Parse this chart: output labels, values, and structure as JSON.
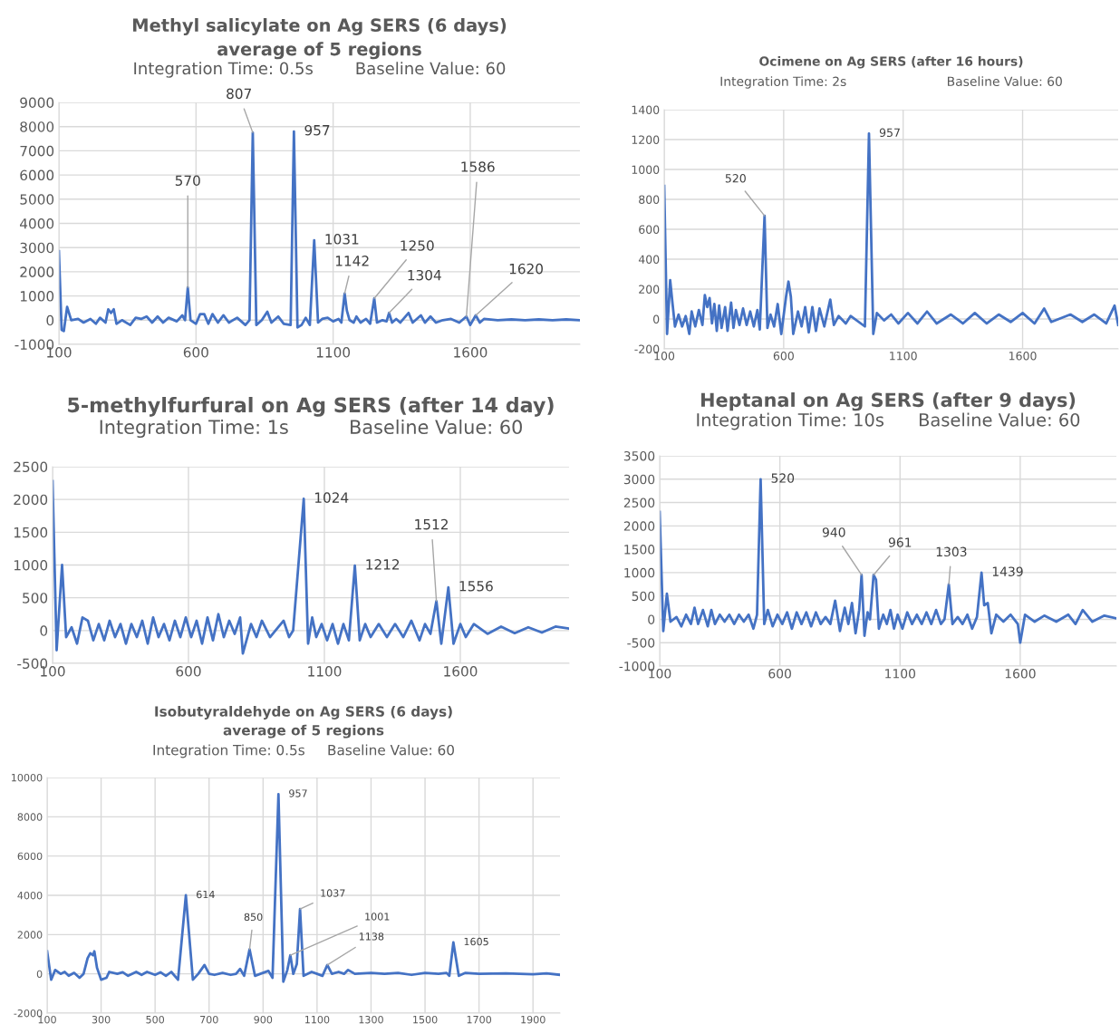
{
  "chart_data": [
    {
      "type": "line",
      "title": "Methyl salicylate on Ag SERS (6 days)\naverage of 5 regions",
      "subtitle": "Integration Time: 0.5s        Baseline Value: 60",
      "color": "#4472c4",
      "grid": true,
      "xlim": [
        100,
        2000
      ],
      "xticks": [
        100,
        600,
        1100,
        1600
      ],
      "ylim": [
        -1000,
        9000
      ],
      "yticks": [
        -1000,
        0,
        1000,
        2000,
        3000,
        4000,
        5000,
        6000,
        7000,
        8000,
        9000
      ],
      "x": [
        100,
        110,
        118,
        130,
        145,
        170,
        190,
        215,
        235,
        250,
        270,
        280,
        290,
        300,
        310,
        330,
        360,
        380,
        400,
        420,
        440,
        460,
        480,
        500,
        530,
        550,
        560,
        570,
        580,
        600,
        615,
        630,
        645,
        660,
        680,
        700,
        720,
        750,
        780,
        795,
        807,
        820,
        840,
        860,
        875,
        900,
        920,
        945,
        957,
        970,
        985,
        1000,
        1015,
        1031,
        1045,
        1060,
        1080,
        1100,
        1120,
        1130,
        1142,
        1150,
        1160,
        1175,
        1185,
        1200,
        1220,
        1235,
        1250,
        1260,
        1280,
        1295,
        1304,
        1315,
        1330,
        1345,
        1375,
        1390,
        1420,
        1435,
        1455,
        1475,
        1500,
        1530,
        1560,
        1586,
        1600,
        1620,
        1635,
        1650,
        1700,
        1750,
        1800,
        1850,
        1900,
        1950,
        2000
      ],
      "values": [
        2850,
        -400,
        -450,
        550,
        0,
        50,
        -100,
        50,
        -150,
        100,
        -100,
        450,
        300,
        450,
        -150,
        0,
        -200,
        100,
        50,
        150,
        -100,
        150,
        -100,
        100,
        -50,
        200,
        0,
        1350,
        0,
        -150,
        250,
        250,
        -150,
        250,
        -100,
        200,
        -100,
        100,
        -200,
        0,
        7750,
        -200,
        0,
        350,
        -100,
        150,
        -150,
        -200,
        7800,
        -300,
        -200,
        100,
        -200,
        3300,
        -100,
        50,
        100,
        -50,
        50,
        -100,
        1100,
        400,
        0,
        -100,
        150,
        -100,
        50,
        -150,
        900,
        -100,
        0,
        -50,
        300,
        -100,
        50,
        -100,
        300,
        -100,
        200,
        -100,
        150,
        -100,
        0,
        50,
        -100,
        150,
        -200,
        200,
        -100,
        50,
        0,
        30,
        0,
        30,
        0,
        30,
        0
      ],
      "annotations": [
        {
          "text": "807",
          "x": 807,
          "y": 7750
        },
        {
          "text": "570",
          "x": 570,
          "y": 1350
        },
        {
          "text": "957",
          "x": 957,
          "y": 7800
        },
        {
          "text": "1031",
          "x": 1031,
          "y": 3300
        },
        {
          "text": "1142",
          "x": 1142,
          "y": 1100
        },
        {
          "text": "1250",
          "x": 1250,
          "y": 900
        },
        {
          "text": "1304",
          "x": 1304,
          "y": 300
        },
        {
          "text": "1586",
          "x": 1586,
          "y": 150
        },
        {
          "text": "1620",
          "x": 1620,
          "y": 200
        }
      ]
    },
    {
      "type": "line",
      "title": "Ocimene on Ag SERS (after 16 hours)",
      "subtitle": "Integration Time: 2s                         Baseline Value: 60",
      "color": "#4472c4",
      "grid": true,
      "xlim": [
        100,
        2000
      ],
      "xticks": [
        100,
        600,
        1100,
        1600
      ],
      "ylim": [
        -200,
        1400
      ],
      "yticks": [
        -200,
        0,
        200,
        400,
        600,
        800,
        1000,
        1200,
        1400
      ],
      "x": [
        100,
        112,
        125,
        135,
        145,
        160,
        175,
        190,
        205,
        215,
        230,
        245,
        260,
        270,
        280,
        290,
        300,
        310,
        320,
        330,
        340,
        355,
        365,
        380,
        390,
        400,
        415,
        430,
        445,
        460,
        475,
        490,
        500,
        520,
        532,
        545,
        560,
        575,
        590,
        610,
        620,
        630,
        640,
        660,
        675,
        690,
        705,
        720,
        735,
        750,
        770,
        795,
        810,
        830,
        860,
        880,
        940,
        957,
        975,
        990,
        1020,
        1050,
        1080,
        1120,
        1160,
        1200,
        1240,
        1300,
        1350,
        1400,
        1450,
        1500,
        1550,
        1600,
        1650,
        1690,
        1720,
        1800,
        1850,
        1900,
        1950,
        1985,
        2000
      ],
      "values": [
        890,
        -100,
        260,
        100,
        -50,
        30,
        -50,
        20,
        -100,
        50,
        -50,
        60,
        -40,
        160,
        80,
        140,
        -30,
        100,
        -80,
        90,
        -60,
        80,
        -80,
        110,
        -60,
        60,
        -40,
        70,
        -40,
        50,
        -50,
        60,
        -70,
        690,
        -60,
        30,
        -50,
        100,
        -100,
        150,
        250,
        150,
        -100,
        50,
        -50,
        80,
        -90,
        80,
        -80,
        70,
        -50,
        130,
        -40,
        20,
        -30,
        20,
        -50,
        1240,
        -100,
        40,
        -10,
        30,
        -30,
        40,
        -30,
        50,
        -30,
        30,
        -30,
        40,
        -30,
        30,
        -20,
        40,
        -30,
        70,
        -20,
        30,
        -20,
        30,
        -30,
        90,
        -40
      ],
      "annotations": [
        {
          "text": "520",
          "x": 520,
          "y": 690
        },
        {
          "text": "957",
          "x": 957,
          "y": 1240
        }
      ]
    },
    {
      "type": "line",
      "title": "5-methylfurfural on Ag SERS (after 14 day)",
      "subtitle": "Integration Time: 1s          Baseline Value: 60",
      "color": "#4472c4",
      "grid": true,
      "xlim": [
        100,
        2000
      ],
      "xticks": [
        100,
        600,
        1100,
        1600
      ],
      "ylim": [
        -500,
        2500
      ],
      "yticks": [
        -500,
        0,
        500,
        1000,
        1500,
        2000,
        2500
      ],
      "x": [
        100,
        115,
        135,
        150,
        170,
        190,
        210,
        230,
        250,
        270,
        290,
        310,
        330,
        350,
        370,
        390,
        410,
        430,
        450,
        470,
        490,
        510,
        530,
        550,
        570,
        590,
        610,
        630,
        650,
        670,
        690,
        710,
        730,
        750,
        770,
        790,
        800,
        830,
        850,
        870,
        900,
        930,
        950,
        970,
        985,
        1024,
        1040,
        1055,
        1070,
        1090,
        1110,
        1130,
        1150,
        1170,
        1190,
        1212,
        1230,
        1250,
        1270,
        1300,
        1330,
        1360,
        1390,
        1420,
        1450,
        1470,
        1490,
        1512,
        1530,
        1556,
        1575,
        1600,
        1620,
        1650,
        1700,
        1750,
        1800,
        1850,
        1900,
        1950,
        2000
      ],
      "values": [
        2280,
        -300,
        1000,
        -100,
        50,
        -200,
        200,
        150,
        -150,
        100,
        -150,
        150,
        -100,
        100,
        -200,
        100,
        -100,
        150,
        -200,
        200,
        -100,
        100,
        -150,
        150,
        -100,
        200,
        -100,
        150,
        -200,
        200,
        -150,
        250,
        -100,
        150,
        -50,
        200,
        -350,
        100,
        -100,
        150,
        -100,
        50,
        150,
        -100,
        0,
        2010,
        -200,
        200,
        -100,
        100,
        -150,
        100,
        -200,
        100,
        -150,
        990,
        -150,
        100,
        -100,
        100,
        -100,
        100,
        -100,
        150,
        -150,
        100,
        -50,
        450,
        -200,
        660,
        -200,
        100,
        -100,
        100,
        -50,
        60,
        -40,
        50,
        -30,
        60,
        30
      ],
      "annotations": [
        {
          "text": "1024",
          "x": 1024,
          "y": 2010
        },
        {
          "text": "1212",
          "x": 1212,
          "y": 990
        },
        {
          "text": "1512",
          "x": 1512,
          "y": 450
        },
        {
          "text": "1556",
          "x": 1556,
          "y": 660
        }
      ]
    },
    {
      "type": "line",
      "title": "Heptanal on Ag SERS (after 9 days)",
      "subtitle": "Integration Time: 10s      Baseline Value: 60",
      "color": "#4472c4",
      "grid": true,
      "xlim": [
        100,
        2000
      ],
      "xticks": [
        100,
        600,
        1100,
        1600
      ],
      "ylim": [
        -1000,
        3500
      ],
      "yticks": [
        -1000,
        -500,
        0,
        500,
        1000,
        1500,
        2000,
        2500,
        3000,
        3500
      ],
      "x": [
        100,
        115,
        130,
        145,
        170,
        190,
        210,
        230,
        245,
        260,
        280,
        300,
        315,
        330,
        350,
        370,
        390,
        410,
        430,
        450,
        470,
        490,
        505,
        520,
        535,
        550,
        570,
        590,
        610,
        630,
        650,
        670,
        690,
        710,
        730,
        750,
        770,
        790,
        810,
        830,
        850,
        870,
        885,
        900,
        915,
        930,
        940,
        952,
        965,
        975,
        990,
        1000,
        1012,
        1030,
        1045,
        1060,
        1075,
        1090,
        1110,
        1130,
        1150,
        1170,
        1190,
        1210,
        1230,
        1250,
        1270,
        1285,
        1303,
        1318,
        1340,
        1360,
        1380,
        1400,
        1420,
        1439,
        1450,
        1465,
        1480,
        1500,
        1530,
        1560,
        1590,
        1600,
        1620,
        1660,
        1700,
        1750,
        1800,
        1830,
        1860,
        1900,
        1950,
        2000
      ],
      "values": [
        2300,
        -250,
        550,
        -50,
        50,
        -150,
        100,
        -100,
        250,
        -100,
        200,
        -150,
        200,
        -100,
        100,
        -50,
        100,
        -100,
        100,
        -50,
        100,
        -200,
        100,
        3000,
        -100,
        200,
        -150,
        100,
        -100,
        150,
        -200,
        150,
        -100,
        150,
        -150,
        150,
        -100,
        50,
        -100,
        400,
        -250,
        250,
        -100,
        350,
        -300,
        200,
        950,
        -350,
        150,
        0,
        950,
        850,
        -200,
        100,
        -100,
        200,
        -200,
        100,
        -200,
        150,
        -100,
        100,
        -100,
        150,
        -100,
        200,
        -100,
        0,
        750,
        -100,
        50,
        -100,
        100,
        -200,
        50,
        1000,
        300,
        350,
        -300,
        100,
        -50,
        100,
        -100,
        -500,
        100,
        -50,
        80,
        -50,
        100,
        -100,
        200,
        -50,
        80,
        20
      ],
      "annotations": [
        {
          "text": "520",
          "x": 520,
          "y": 3000
        },
        {
          "text": "940",
          "x": 940,
          "y": 950
        },
        {
          "text": "961",
          "x": 990,
          "y": 950
        },
        {
          "text": "1303",
          "x": 1303,
          "y": 750
        },
        {
          "text": "1439",
          "x": 1439,
          "y": 1000
        }
      ]
    },
    {
      "type": "line",
      "title": "Isobutyraldehyde on Ag SERS (6 days)\naverage of 5 regions",
      "subtitle": "Integration Time: 0.5s     Baseline Value: 60",
      "color": "#4472c4",
      "grid": true,
      "xlim": [
        100,
        2000
      ],
      "xticks": [
        100,
        300,
        500,
        700,
        900,
        1100,
        1300,
        1500,
        1700,
        1900
      ],
      "ylim": [
        -2000,
        10000
      ],
      "yticks": [
        -2000,
        0,
        2000,
        4000,
        6000,
        8000,
        10000
      ],
      "x": [
        100,
        115,
        130,
        150,
        165,
        180,
        200,
        220,
        235,
        250,
        260,
        270,
        275,
        285,
        300,
        320,
        330,
        360,
        380,
        400,
        430,
        450,
        470,
        500,
        520,
        540,
        560,
        585,
        614,
        640,
        660,
        683,
        700,
        720,
        750,
        780,
        800,
        815,
        830,
        850,
        870,
        890,
        920,
        935,
        957,
        975,
        990,
        1001,
        1012,
        1025,
        1037,
        1050,
        1080,
        1100,
        1120,
        1138,
        1155,
        1180,
        1200,
        1215,
        1240,
        1300,
        1350,
        1400,
        1450,
        1500,
        1550,
        1580,
        1590,
        1605,
        1625,
        1650,
        1700,
        1800,
        1900,
        1950,
        2000
      ],
      "values": [
        1150,
        -300,
        200,
        0,
        100,
        -100,
        50,
        -200,
        0,
        800,
        1050,
        950,
        1150,
        300,
        -300,
        -200,
        100,
        0,
        80,
        -100,
        100,
        -50,
        100,
        -50,
        80,
        -100,
        100,
        -300,
        4000,
        -300,
        0,
        450,
        0,
        -50,
        50,
        -50,
        0,
        250,
        -100,
        1250,
        -100,
        0,
        150,
        -200,
        9150,
        -400,
        200,
        950,
        0,
        500,
        3300,
        -100,
        100,
        0,
        -100,
        450,
        0,
        100,
        0,
        200,
        0,
        50,
        0,
        50,
        -50,
        50,
        0,
        50,
        -100,
        1600,
        -100,
        50,
        0,
        20,
        -20,
        30,
        -50
      ],
      "annotations": [
        {
          "text": "614",
          "x": 614,
          "y": 4000
        },
        {
          "text": "850",
          "x": 850,
          "y": 1250
        },
        {
          "text": "957",
          "x": 957,
          "y": 9150
        },
        {
          "text": "1037",
          "x": 1037,
          "y": 3300
        },
        {
          "text": "1001",
          "x": 1001,
          "y": 950
        },
        {
          "text": "1138",
          "x": 1138,
          "y": 450
        },
        {
          "text": "1605",
          "x": 1605,
          "y": 1600
        }
      ]
    }
  ]
}
